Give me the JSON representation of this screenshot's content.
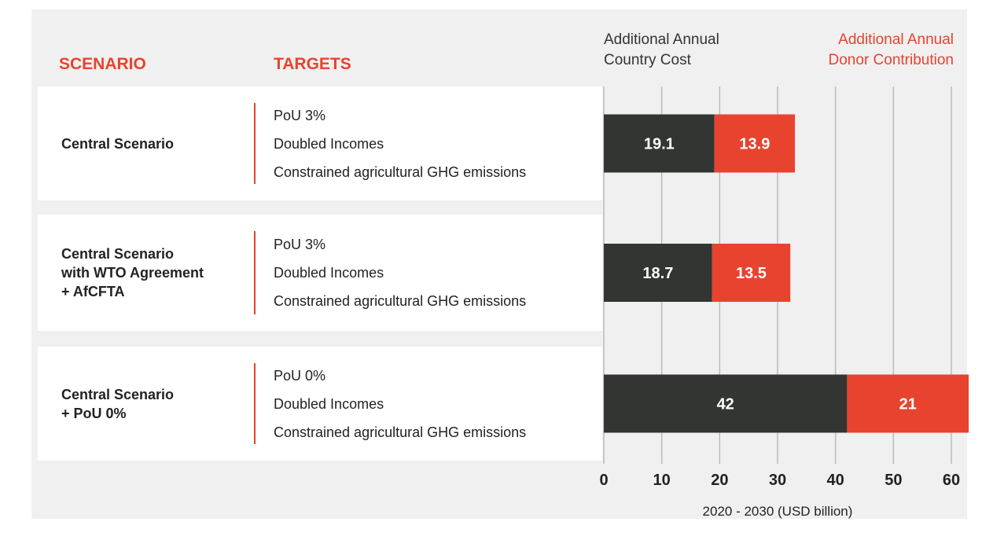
{
  "chart_data": {
    "type": "stacked_barh",
    "headers": [
      "SCENARIO",
      "TARGETS"
    ],
    "categories": [
      [
        "Central Scenario"
      ],
      [
        "Central Scenario",
        "with WTO Agreement",
        "+ AfCFTA"
      ],
      [
        "Central Scenario",
        "+ PoU 0%"
      ]
    ],
    "targets": [
      [
        "PoU 3%",
        "Doubled Incomes",
        "Constrained agricultural GHG emissions"
      ],
      [
        "PoU 3%",
        "Doubled Incomes",
        "Constrained agricultural GHG emissions"
      ],
      [
        "PoU 0%",
        "Doubled Incomes",
        "Constrained agricultural GHG emissions"
      ]
    ],
    "series": [
      {
        "name": "Additional Annual Country Cost",
        "color": "#333533",
        "values": [
          19.1,
          18.7,
          42
        ]
      },
      {
        "name": "Additional Annual Donor Contribution",
        "color": "#e8432e",
        "values": [
          13.9,
          13.5,
          21
        ]
      }
    ],
    "xlim": [
      0,
      60
    ],
    "xticks": [
      0,
      10,
      20,
      30,
      40,
      50,
      60
    ],
    "xlabel": "2020 - 2030 (USD billion)",
    "grid": true
  }
}
